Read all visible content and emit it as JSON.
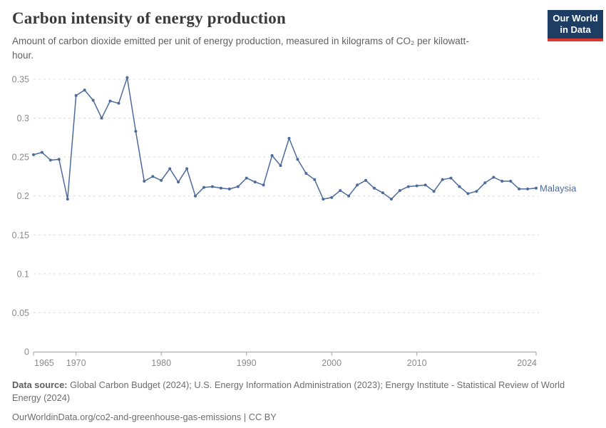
{
  "header": {
    "title": "Carbon intensity of energy production",
    "subtitle": "Amount of carbon dioxide emitted per unit of energy production, measured in kilograms of CO₂ per kilowatt-hour.",
    "logo": {
      "line1": "Our World",
      "line2": "in Data"
    }
  },
  "chart_data": {
    "type": "line",
    "title": "Carbon intensity of energy production",
    "xlabel": "",
    "ylabel": "kilograms of CO₂ per kilowatt-hour",
    "xlim": [
      1965,
      2024
    ],
    "ylim": [
      0,
      0.35
    ],
    "x_ticks": [
      1965,
      1970,
      1980,
      1990,
      2000,
      2010,
      2024
    ],
    "y_ticks": [
      0,
      0.05,
      0.1,
      0.15,
      0.2,
      0.25,
      0.3,
      0.35
    ],
    "grid": "horizontal-dashed",
    "legend_position": "end-of-line-label",
    "series": [
      {
        "name": "Malaysia",
        "color": "#4C6B9C",
        "x": [
          1965,
          1966,
          1967,
          1968,
          1969,
          1970,
          1971,
          1972,
          1973,
          1974,
          1975,
          1976,
          1977,
          1978,
          1979,
          1980,
          1981,
          1982,
          1983,
          1984,
          1985,
          1986,
          1987,
          1988,
          1989,
          1990,
          1991,
          1992,
          1993,
          1994,
          1995,
          1996,
          1997,
          1998,
          1999,
          2000,
          2001,
          2002,
          2003,
          2004,
          2005,
          2006,
          2007,
          2008,
          2009,
          2010,
          2011,
          2012,
          2013,
          2014,
          2015,
          2016,
          2017,
          2018,
          2019,
          2020,
          2021,
          2022,
          2023,
          2024
        ],
        "values": [
          0.253,
          0.256,
          0.246,
          0.247,
          0.196,
          0.329,
          0.336,
          0.323,
          0.3,
          0.322,
          0.319,
          0.352,
          0.283,
          0.219,
          0.225,
          0.22,
          0.235,
          0.218,
          0.235,
          0.2,
          0.211,
          0.212,
          0.21,
          0.209,
          0.212,
          0.223,
          0.218,
          0.214,
          0.252,
          0.239,
          0.274,
          0.247,
          0.229,
          0.221,
          0.196,
          0.198,
          0.207,
          0.2,
          0.214,
          0.22,
          0.21,
          0.204,
          0.196,
          0.207,
          0.212,
          0.213,
          0.214,
          0.206,
          0.221,
          0.223,
          0.212,
          0.203,
          0.206,
          0.217,
          0.224,
          0.219,
          0.219,
          0.209,
          0.209,
          0.21
        ]
      }
    ]
  },
  "footer": {
    "datasource_label": "Data source:",
    "datasource_text": " Global Carbon Budget (2024); U.S. Energy Information Administration (2023); Energy Institute - Statistical Review of World Energy (2024)",
    "link_text": "OurWorldinData.org/co2-and-greenhouse-gas-emissions",
    "license_suffix": " | CC BY"
  },
  "colors": {
    "line": "#4C6B9C",
    "logo_bg": "#1d3d63",
    "logo_accent": "#dc3832",
    "grid": "#dcdcdc",
    "axis": "#a3a3a3",
    "tick_label": "#8b8b8b",
    "title": "#3a3a3a",
    "subtitle": "#616161",
    "footer": "#6e6e6e",
    "footer_label": "#5f5f5f"
  }
}
